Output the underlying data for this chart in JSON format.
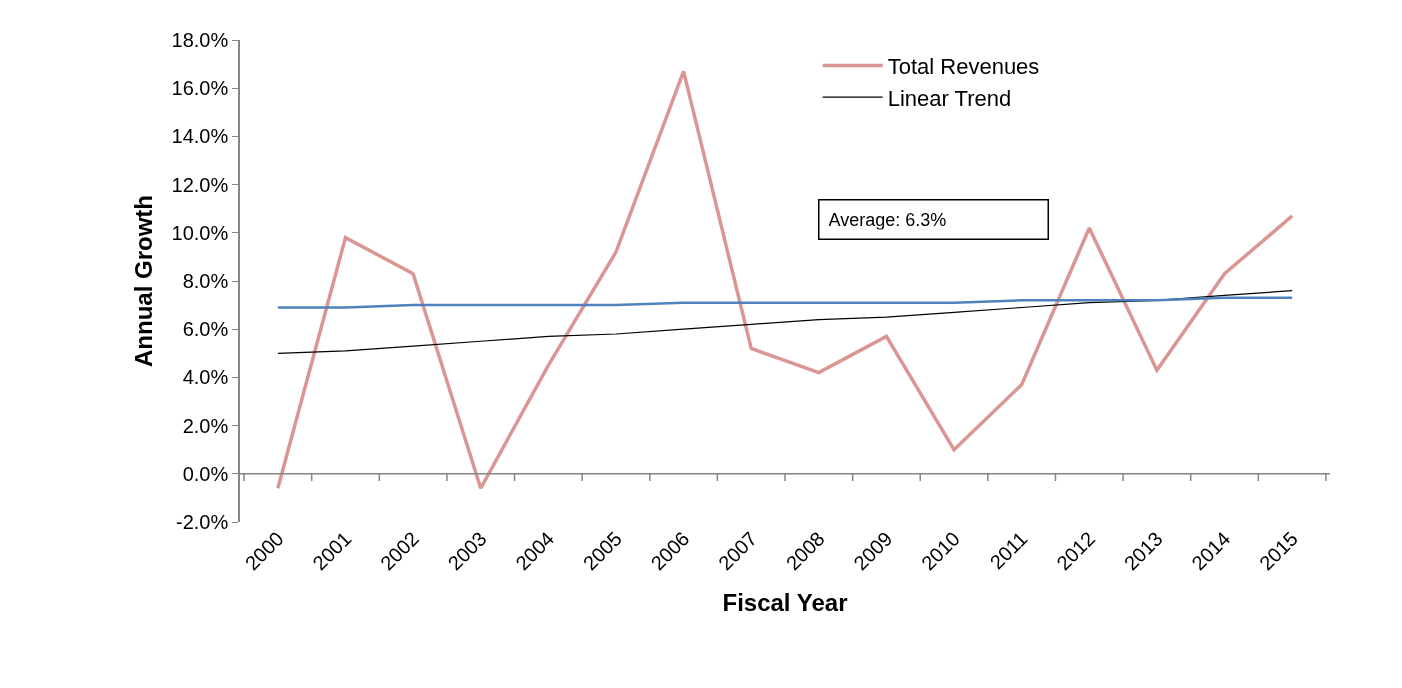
{
  "chart_data": {
    "type": "line",
    "xlabel": "Fiscal Year",
    "ylabel": "Annual Growth",
    "categories": [
      "2000",
      "2001",
      "2002",
      "2003",
      "2004",
      "2005",
      "2006",
      "2007",
      "2008",
      "2009",
      "2010",
      "2011",
      "2012",
      "2013",
      "2014",
      "2015"
    ],
    "series": [
      {
        "name": "Total Revenues",
        "color": "#d99694",
        "values": [
          -0.6,
          9.8,
          8.3,
          -0.6,
          4.5,
          9.2,
          16.7,
          5.2,
          4.2,
          5.7,
          1.0,
          3.7,
          10.2,
          4.3,
          8.3,
          10.7
        ]
      },
      {
        "name": "Linear Trend",
        "color": "#000000",
        "values": [
          5.0,
          5.1,
          5.3,
          5.5,
          5.7,
          5.8,
          6.0,
          6.2,
          6.4,
          6.5,
          6.7,
          6.9,
          7.1,
          7.2,
          7.4,
          7.6
        ]
      },
      {
        "color": "#4f81bd",
        "values": [
          6.9,
          6.9,
          7.0,
          7.0,
          7.0,
          7.0,
          7.1,
          7.1,
          7.1,
          7.1,
          7.1,
          7.2,
          7.2,
          7.2,
          7.3,
          7.3
        ]
      }
    ],
    "annotations": [
      "Average: 6.3%"
    ],
    "ylim": [
      -2,
      18
    ],
    "yticks": [
      {
        "value": -2,
        "label": "-2.0%"
      },
      {
        "value": 0,
        "label": "0.0%"
      },
      {
        "value": 2,
        "label": "2.0%"
      },
      {
        "value": 4,
        "label": "4.0%"
      },
      {
        "value": 6,
        "label": "6.0%"
      },
      {
        "value": 8,
        "label": "8.0%"
      },
      {
        "value": 10,
        "label": "10.0%"
      },
      {
        "value": 12,
        "label": "12.0%"
      },
      {
        "value": 14,
        "label": "14.0%"
      },
      {
        "value": 16,
        "label": "16.0%"
      },
      {
        "value": 18,
        "label": "18.0%"
      }
    ],
    "ref_lines": [
      {
        "axis": "y",
        "value": 0,
        "color": "#868686"
      }
    ],
    "legend": "top",
    "marker": "none",
    "line_style": "solid"
  }
}
